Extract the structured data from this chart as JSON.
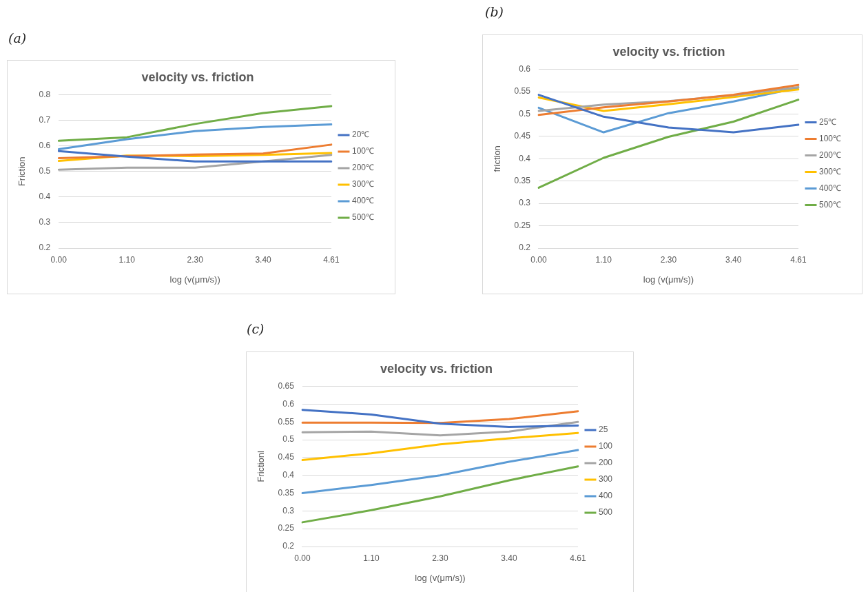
{
  "chart_data": [
    {
      "type": "line",
      "title": "velocity vs. friction",
      "xlabel": "log (v(μm/s))",
      "ylabel": "Friction",
      "annotations": [
        "(a)"
      ],
      "categories": [
        "0.00",
        "1.10",
        "2.30",
        "3.40",
        "4.61"
      ],
      "ylim": [
        0.2,
        0.8
      ],
      "yticks": [
        {
          "value": 0.2,
          "label": "0.2"
        },
        {
          "value": 0.3,
          "label": "0.3"
        },
        {
          "value": 0.4,
          "label": "0.4"
        },
        {
          "value": 0.5,
          "label": "0.5"
        },
        {
          "value": 0.6,
          "label": "0.6"
        },
        {
          "value": 0.7,
          "label": "0.7"
        },
        {
          "value": 0.8,
          "label": "0.8"
        }
      ],
      "grid": "y",
      "legend": "right",
      "marker": "none",
      "series": [
        {
          "name": "20℃",
          "color": "#4472c4",
          "values": [
            0.58,
            0.558,
            0.539,
            0.539,
            0.539
          ]
        },
        {
          "name": "100℃",
          "color": "#ed7d31",
          "values": [
            0.552,
            0.56,
            0.566,
            0.57,
            0.605
          ]
        },
        {
          "name": "200℃",
          "color": "#a5a5a5",
          "values": [
            0.507,
            0.515,
            0.515,
            0.539,
            0.565
          ]
        },
        {
          "name": "300℃",
          "color": "#ffc000",
          "values": [
            0.541,
            0.562,
            0.56,
            0.565,
            0.572
          ]
        },
        {
          "name": "400℃",
          "color": "#5b9bd5",
          "values": [
            0.587,
            0.626,
            0.658,
            0.674,
            0.684
          ]
        },
        {
          "name": "500℃",
          "color": "#70ad47",
          "values": [
            0.62,
            0.634,
            0.686,
            0.729,
            0.756
          ]
        }
      ]
    },
    {
      "type": "line",
      "title": "velocity vs. friction",
      "xlabel": "log (v(μm/s))",
      "ylabel": "friction",
      "annotations": [
        "(b)"
      ],
      "categories": [
        "0.00",
        "1.10",
        "2.30",
        "3.40",
        "4.61"
      ],
      "ylim": [
        0.2,
        0.6
      ],
      "yticks": [
        {
          "value": 0.2,
          "label": "0.2"
        },
        0.25,
        {
          "value": 0.3,
          "label": "0.3"
        },
        0.35,
        {
          "value": 0.4,
          "label": "0.4"
        },
        0.45,
        {
          "value": 0.5,
          "label": "0.5"
        },
        0.55,
        {
          "value": 0.6,
          "label": "0.6"
        }
      ],
      "grid": "y",
      "legend": "right",
      "marker": "none",
      "series": [
        {
          "name": "25℃",
          "color": "#4472c4",
          "values": [
            0.543,
            0.494,
            0.47,
            0.459,
            0.476
          ]
        },
        {
          "name": "100℃",
          "color": "#ed7d31",
          "values": [
            0.498,
            0.515,
            0.528,
            0.543,
            0.565
          ]
        },
        {
          "name": "200℃",
          "color": "#a5a5a5",
          "values": [
            0.507,
            0.521,
            0.529,
            0.542,
            0.56
          ]
        },
        {
          "name": "300℃",
          "color": "#ffc000",
          "values": [
            0.537,
            0.507,
            0.522,
            0.538,
            0.555
          ]
        },
        {
          "name": "400℃",
          "color": "#5b9bd5",
          "values": [
            0.514,
            0.459,
            0.502,
            0.528,
            0.559
          ]
        },
        {
          "name": "500℃",
          "color": "#70ad47",
          "values": [
            0.335,
            0.402,
            0.449,
            0.483,
            0.532
          ]
        }
      ]
    },
    {
      "type": "line",
      "title": "velocity vs. friction",
      "xlabel": "log (v(μm/s))",
      "ylabel": "Frictionl",
      "annotations": [
        "(c)"
      ],
      "categories": [
        "0.00",
        "1.10",
        "2.30",
        "3.40",
        "4.61"
      ],
      "ylim": [
        0.2,
        0.65
      ],
      "yticks": [
        {
          "value": 0.2,
          "label": "0.2"
        },
        0.25,
        {
          "value": 0.3,
          "label": "0.3"
        },
        0.35,
        {
          "value": 0.4,
          "label": "0.4"
        },
        0.45,
        {
          "value": 0.5,
          "label": "0.5"
        },
        0.55,
        {
          "value": 0.6,
          "label": "0.6"
        },
        0.65
      ],
      "grid": "y",
      "legend": "right",
      "marker": "none",
      "series": [
        {
          "name": "25",
          "color": "#4472c4",
          "values": [
            0.584,
            0.571,
            0.545,
            0.536,
            0.54
          ]
        },
        {
          "name": "100",
          "color": "#ed7d31",
          "values": [
            0.548,
            0.548,
            0.547,
            0.558,
            0.58
          ]
        },
        {
          "name": "200",
          "color": "#a5a5a5",
          "values": [
            0.521,
            0.523,
            0.512,
            0.523,
            0.55
          ]
        },
        {
          "name": "300",
          "color": "#ffc000",
          "values": [
            0.443,
            0.462,
            0.487,
            0.504,
            0.519
          ]
        },
        {
          "name": "400",
          "color": "#5b9bd5",
          "values": [
            0.35,
            0.373,
            0.4,
            0.438,
            0.471
          ]
        },
        {
          "name": "500",
          "color": "#70ad47",
          "values": [
            0.268,
            0.302,
            0.341,
            0.386,
            0.425
          ]
        }
      ]
    }
  ]
}
